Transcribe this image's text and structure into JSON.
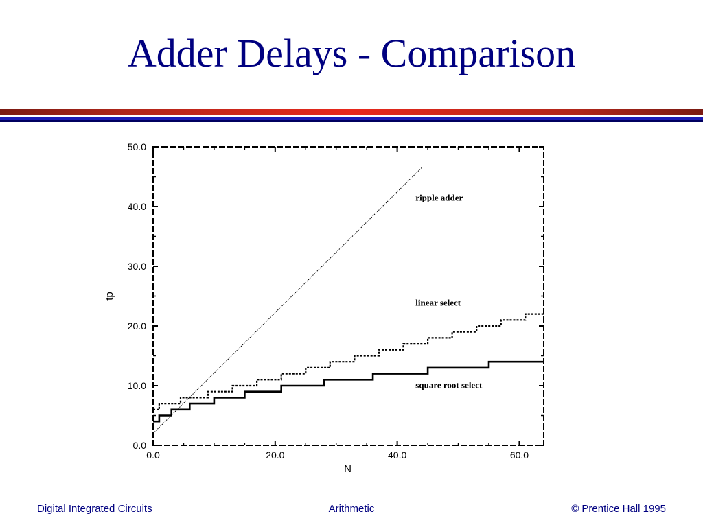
{
  "slide": {
    "title": "Adder Delays - Comparison",
    "footer_left": "Digital Integrated Circuits",
    "footer_center": "Arithmetic",
    "footer_right": "© Prentice Hall 1995"
  },
  "colors": {
    "title": "#000080",
    "rule_red": "#e8281c",
    "rule_blue": "#1a1ab4",
    "series": "#000000"
  },
  "chart_data": {
    "type": "line",
    "title": "",
    "xlabel": "N",
    "ylabel": "tp",
    "xlim": [
      0,
      64
    ],
    "ylim": [
      0,
      50
    ],
    "x_ticks": [
      0,
      20,
      40,
      60
    ],
    "x_tick_labels": [
      "0.0",
      "20.0",
      "40.0",
      "60.0"
    ],
    "y_ticks": [
      0,
      10,
      20,
      30,
      40,
      50
    ],
    "y_tick_labels": [
      "0.0",
      "10.0",
      "20.0",
      "30.0",
      "40.0",
      "50.0"
    ],
    "grid": false,
    "legend": "none",
    "series": [
      {
        "name": "ripple adder",
        "style": "dotted-thin",
        "label_pos": [
          43,
          41
        ],
        "points": [
          [
            0,
            2
          ],
          [
            44,
            46.5
          ]
        ]
      },
      {
        "name": "linear select",
        "style": "dashed-step",
        "label_pos": [
          43,
          23.4
        ],
        "points": [
          [
            0,
            6
          ],
          [
            1,
            6
          ],
          [
            1,
            7
          ],
          [
            4.5,
            7
          ],
          [
            4.5,
            8
          ],
          [
            9,
            8
          ],
          [
            9,
            9
          ],
          [
            13,
            9
          ],
          [
            13,
            10
          ],
          [
            17,
            10
          ],
          [
            17,
            11
          ],
          [
            21,
            11
          ],
          [
            21,
            12
          ],
          [
            25,
            12
          ],
          [
            25,
            13
          ],
          [
            29,
            13
          ],
          [
            29,
            14
          ],
          [
            33,
            14
          ],
          [
            33,
            15
          ],
          [
            37,
            15
          ],
          [
            37,
            16
          ],
          [
            41,
            16
          ],
          [
            41,
            17
          ],
          [
            45,
            17
          ],
          [
            45,
            18
          ],
          [
            49,
            18
          ],
          [
            49,
            19
          ],
          [
            53,
            19
          ],
          [
            53,
            20
          ],
          [
            57,
            20
          ],
          [
            57,
            21
          ],
          [
            61,
            21
          ],
          [
            61,
            22
          ],
          [
            64,
            22
          ]
        ]
      },
      {
        "name": "square root select",
        "style": "solid-step",
        "label_pos": [
          43,
          9.6
        ],
        "points": [
          [
            0,
            4
          ],
          [
            1,
            4
          ],
          [
            1,
            5
          ],
          [
            3,
            5
          ],
          [
            3,
            6
          ],
          [
            6,
            6
          ],
          [
            6,
            7
          ],
          [
            10,
            7
          ],
          [
            10,
            8
          ],
          [
            15,
            8
          ],
          [
            15,
            9
          ],
          [
            21,
            9
          ],
          [
            21,
            10
          ],
          [
            28,
            10
          ],
          [
            28,
            11
          ],
          [
            36,
            11
          ],
          [
            36,
            12
          ],
          [
            45,
            12
          ],
          [
            45,
            13
          ],
          [
            55,
            13
          ],
          [
            55,
            14
          ],
          [
            64,
            14
          ]
        ]
      }
    ]
  }
}
